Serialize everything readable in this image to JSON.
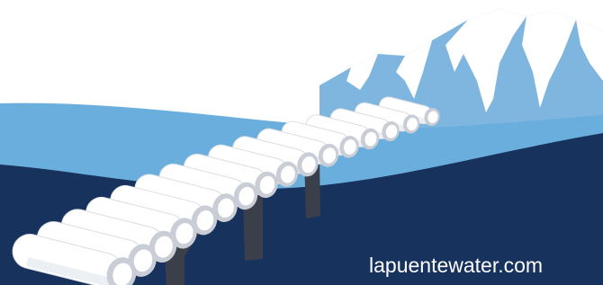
{
  "site_url": "lapuentewater.com"
}
